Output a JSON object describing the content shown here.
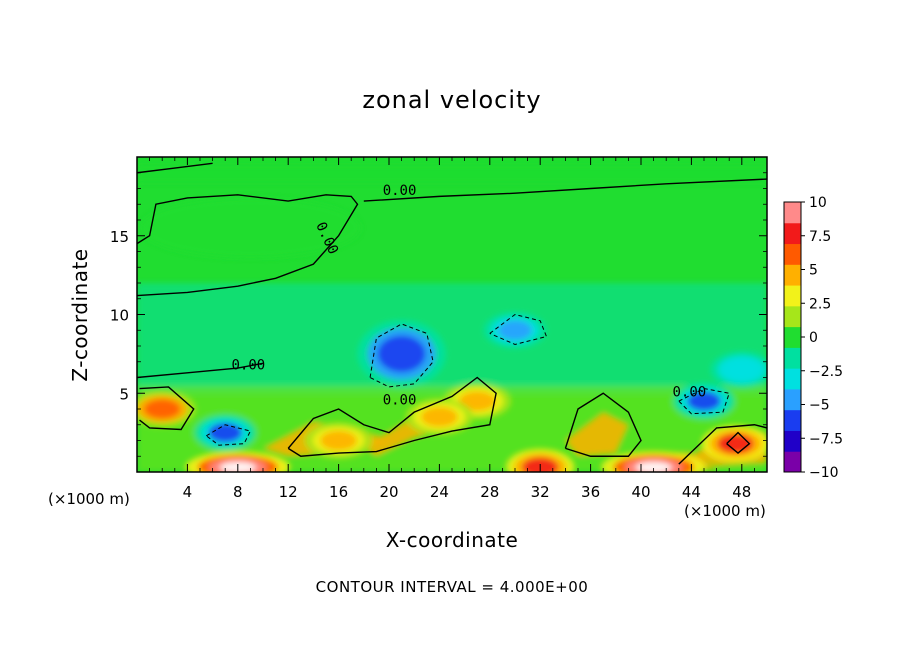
{
  "chart_data": {
    "type": "heatmap",
    "title": "zonal velocity",
    "xlabel": "X-coordinate",
    "ylabel": "Z-coordinate",
    "x_unit_label": "(×1000 m)",
    "x_unit_label_right": "(×1000 m)",
    "footer": "CONTOUR INTERVAL = 4.000E+00",
    "xlim": [
      0,
      50
    ],
    "ylim": [
      0,
      20
    ],
    "x_ticks": [
      4,
      8,
      12,
      16,
      20,
      24,
      28,
      32,
      36,
      40,
      44,
      48
    ],
    "y_ticks": [
      5,
      10,
      15
    ],
    "colorbar": {
      "min": -10,
      "max": 10,
      "ticks": [
        "10",
        "7.5",
        "5",
        "2.5",
        "0",
        "−2.5",
        "−5",
        "−7.5",
        "−10"
      ],
      "colors": [
        "#7a00a8",
        "#2000c8",
        "#1a3df0",
        "#2aa0ff",
        "#00e0e0",
        "#00e0a0",
        "#20dd30",
        "#a6e61a",
        "#f2f21a",
        "#ffb000",
        "#ff5a00",
        "#f21a1a",
        "#ff8a8a"
      ]
    },
    "contour_labels": [
      "0.00",
      "0.00",
      "0.00",
      "0.00",
      "0.00"
    ],
    "features": [
      {
        "type": "jet-positive",
        "x": 8,
        "z": 0.3,
        "value": 10
      },
      {
        "type": "jet-positive",
        "x": 41,
        "z": 0.3,
        "value": 10
      },
      {
        "type": "jet-positive",
        "x": 32,
        "z": 0.3,
        "value": 7.5
      },
      {
        "type": "cell-positive",
        "x": 2,
        "z": 4,
        "value": 7
      },
      {
        "type": "cell-positive",
        "x": 47.5,
        "z": 1.8,
        "value": 8
      },
      {
        "type": "cell-positive",
        "x": 27,
        "z": 4.5,
        "value": 5
      },
      {
        "type": "band-positive",
        "x": 16,
        "z": 2,
        "value": 5
      },
      {
        "type": "band-positive",
        "x": 24,
        "z": 3.5,
        "value": 5
      },
      {
        "type": "cell-negative",
        "x": 21,
        "z": 7.5,
        "value": -7
      },
      {
        "type": "cell-negative",
        "x": 30,
        "z": 9,
        "value": -5
      },
      {
        "type": "cell-negative",
        "x": 7,
        "z": 2.5,
        "value": -6
      },
      {
        "type": "cell-negative",
        "x": 45,
        "z": 4.5,
        "value": -6
      },
      {
        "type": "cell-negative",
        "x": 48,
        "z": 6.5,
        "value": -4
      }
    ]
  }
}
